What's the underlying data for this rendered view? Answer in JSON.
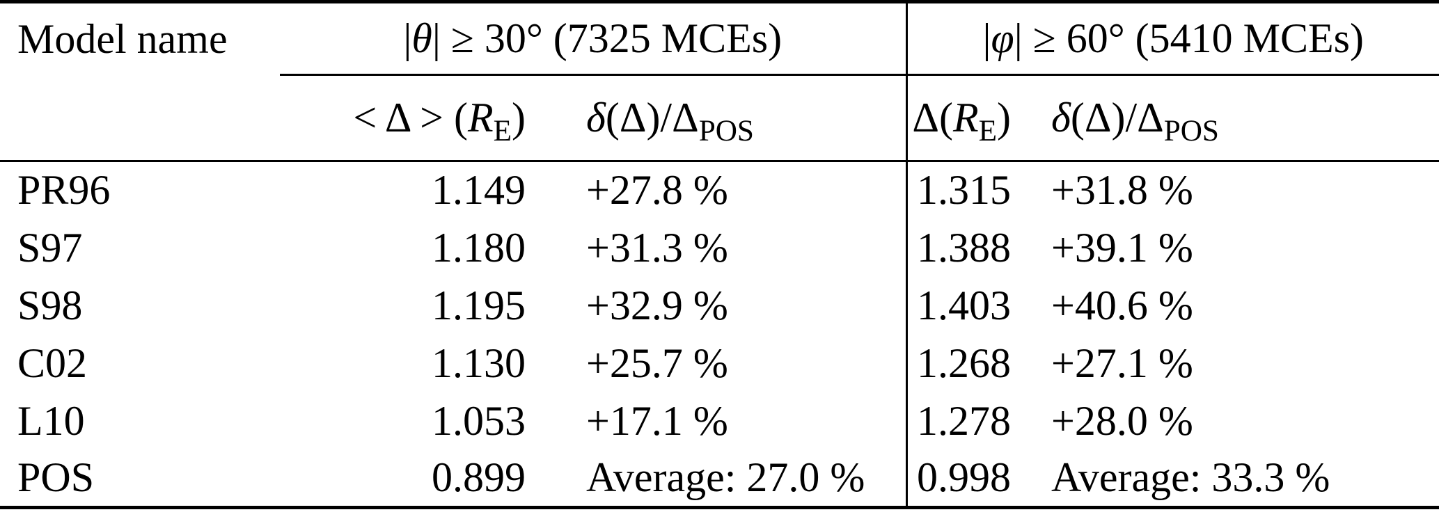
{
  "table": {
    "model_col_header": "Model name",
    "group1": {
      "pre": "|",
      "sym": "θ",
      "post": "| ≥ 30° (7325 MCEs)"
    },
    "group2": {
      "pre": "|",
      "sym": "φ",
      "post": "| ≥ 60° (5410 MCEs)"
    },
    "sub": {
      "mean_delta": {
        "pre": "< Δ > (",
        "var": "R",
        "sub": "E",
        "post": ")"
      },
      "rel1": {
        "var": "δ",
        "mid": "(Δ)/Δ",
        "sub": "POS"
      },
      "delta_re": {
        "pre": "Δ(",
        "var": "R",
        "sub": "E",
        "post": ")"
      },
      "rel2": {
        "var": "δ",
        "mid": "(Δ)/Δ",
        "sub": "POS"
      }
    },
    "rows": [
      {
        "model": "PR96",
        "v1": "1.149",
        "p1": "+27.8 %",
        "v2": "1.315",
        "p2": "+31.8 %"
      },
      {
        "model": "S97",
        "v1": "1.180",
        "p1": "+31.3 %",
        "v2": "1.388",
        "p2": "+39.1 %"
      },
      {
        "model": "S98",
        "v1": "1.195",
        "p1": "+32.9 %",
        "v2": "1.403",
        "p2": "+40.6 %"
      },
      {
        "model": "C02",
        "v1": "1.130",
        "p1": "+25.7 %",
        "v2": "1.268",
        "p2": "+27.1 %"
      },
      {
        "model": "L10",
        "v1": "1.053",
        "p1": "+17.1 %",
        "v2": "1.278",
        "p2": "+28.0 %"
      },
      {
        "model": "POS",
        "v1": "0.899",
        "p1": "Average: 27.0 %",
        "v2": "0.998",
        "p2": "Average: 33.3 %"
      }
    ]
  },
  "chart_data": {
    "type": "table",
    "column_groups": [
      {
        "label": "|θ| ≥ 30° (7325 MCEs)",
        "mce_count": 7325,
        "condition": "|θ| ≥ 30°"
      },
      {
        "label": "|φ| ≥ 60° (5410 MCEs)",
        "mce_count": 5410,
        "condition": "|φ| ≥ 60°"
      }
    ],
    "columns": [
      "Model name",
      "<Δ> (RE)",
      "δ(Δ)/ΔPOS",
      "Δ(RE)",
      "δ(Δ)/ΔPOS"
    ],
    "rows": [
      [
        "PR96",
        1.149,
        "+27.8 %",
        1.315,
        "+31.8 %"
      ],
      [
        "S97",
        1.18,
        "+31.3 %",
        1.388,
        "+39.1 %"
      ],
      [
        "S98",
        1.195,
        "+32.9 %",
        1.403,
        "+40.6 %"
      ],
      [
        "C02",
        1.13,
        "+25.7 %",
        1.268,
        "+27.1 %"
      ],
      [
        "L10",
        1.053,
        "+17.1 %",
        1.278,
        "+28.0 %"
      ],
      [
        "POS",
        0.899,
        "Average: 27.0 %",
        0.998,
        "Average: 33.3 %"
      ]
    ]
  }
}
